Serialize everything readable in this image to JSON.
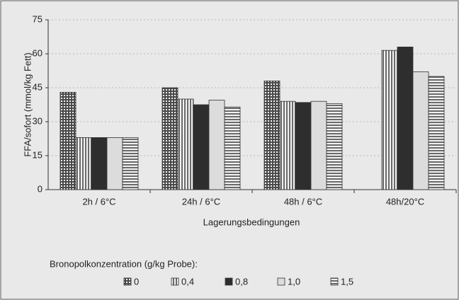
{
  "chart_data": {
    "type": "bar",
    "y_label": "FFA/sofort (mmol/kg Fett)",
    "x_label": "Lagerungsbedingungen",
    "legend_title": "Bronopolkonzentration (g/kg Probe):",
    "categories": [
      "2h / 6°C",
      "24h / 6°C",
      "48h / 6°C",
      "48h/20°C"
    ],
    "series": [
      {
        "name": "0",
        "color": "#4a4a4a",
        "pattern": "grid",
        "values": [
          43,
          45,
          48,
          null
        ]
      },
      {
        "name": "0,4",
        "color": "#6a6a6a",
        "pattern": "vertical",
        "values": [
          23,
          40,
          39,
          61.5
        ]
      },
      {
        "name": "0,8",
        "color": "#2e2e2e",
        "pattern": "solid",
        "values": [
          23,
          37.5,
          38.5,
          63
        ]
      },
      {
        "name": "1,0",
        "color": "#dcdcdc",
        "pattern": "solid",
        "values": [
          23,
          39.5,
          39,
          52
        ]
      },
      {
        "name": "1,5",
        "color": "#6a6a6a",
        "pattern": "horizontal",
        "values": [
          23,
          36.5,
          38,
          50
        ]
      }
    ],
    "ylim": [
      0,
      75
    ],
    "yticks": [
      0,
      15,
      30,
      45,
      60,
      75
    ],
    "grid": true
  }
}
